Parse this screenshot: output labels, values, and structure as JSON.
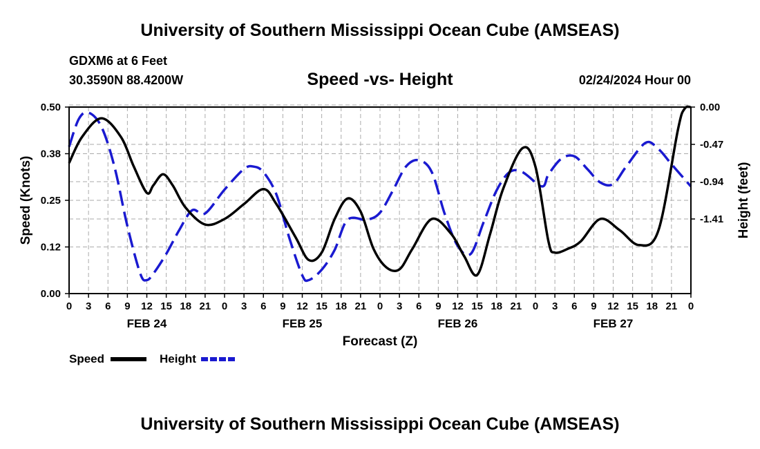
{
  "header": {
    "main_title": "University of Southern Mississippi Ocean Cube (AMSEAS)",
    "station": "GDXM6 at 6 Feet",
    "coords": "30.3590N  88.4200W",
    "chart_title": "Speed -vs- Height",
    "datetime": "02/24/2024 Hour 00"
  },
  "footer": {
    "title": "University of Southern Mississippi Ocean Cube (AMSEAS)"
  },
  "colors": {
    "speed": "#000000",
    "height": "#1a1ad0",
    "grid": "#aaaaaa"
  },
  "chart_data": {
    "type": "line",
    "title": "Speed -vs- Height",
    "xlabel": "Forecast (Z)",
    "ylabel": "Speed (Knots)",
    "y2label": "Height (feet)",
    "xlim": [
      0,
      96
    ],
    "ylim": [
      0,
      0.5
    ],
    "y2lim": [
      -2.35,
      0.0
    ],
    "y_ticks": [
      "0.00",
      "0.12",
      "0.25",
      "0.38",
      "0.50"
    ],
    "y_tick_values": [
      0,
      0.125,
      0.25,
      0.375,
      0.5
    ],
    "y2_ticks": [
      "0.00",
      "-0.47",
      "-0.94",
      "-1.41"
    ],
    "y2_tick_values": [
      0,
      -0.47,
      -0.94,
      -1.41
    ],
    "x_tick_labels": [
      "0",
      "3",
      "6",
      "9",
      "12",
      "15",
      "18",
      "21",
      "0",
      "3",
      "6",
      "9",
      "12",
      "15",
      "18",
      "21",
      "0",
      "3",
      "6",
      "9",
      "12",
      "15",
      "18",
      "21",
      "0",
      "3",
      "6",
      "9",
      "12",
      "15",
      "18",
      "21",
      "0"
    ],
    "day_labels": [
      {
        "label": "FEB 24",
        "hour": 12
      },
      {
        "label": "FEB 25",
        "hour": 36
      },
      {
        "label": "FEB 26",
        "hour": 60
      },
      {
        "label": "FEB 27",
        "hour": 84
      }
    ],
    "legend": [
      "Speed",
      "Height"
    ],
    "legend_position": "bottom-left",
    "series": [
      {
        "name": "Speed",
        "axis": "left",
        "style": "solid",
        "x": [
          0,
          2,
          5,
          8,
          10,
          12,
          13,
          14.5,
          16,
          18,
          21,
          24,
          27,
          30,
          32,
          35,
          37,
          39,
          41,
          43,
          45,
          47,
          49,
          51,
          53,
          56,
          59,
          61,
          63,
          65,
          67,
          70,
          72,
          74,
          75,
          77,
          79,
          82,
          85,
          88,
          91,
          94,
          95,
          96
        ],
        "values": [
          0.35,
          0.42,
          0.47,
          0.42,
          0.34,
          0.27,
          0.29,
          0.32,
          0.29,
          0.23,
          0.185,
          0.2,
          0.24,
          0.28,
          0.24,
          0.15,
          0.09,
          0.11,
          0.2,
          0.255,
          0.22,
          0.12,
          0.07,
          0.065,
          0.12,
          0.2,
          0.16,
          0.1,
          0.05,
          0.16,
          0.28,
          0.39,
          0.34,
          0.14,
          0.11,
          0.12,
          0.14,
          0.2,
          0.17,
          0.13,
          0.17,
          0.44,
          0.495,
          0.5
        ]
      },
      {
        "name": "Height",
        "axis": "right",
        "style": "dashed",
        "x": [
          0,
          1.5,
          3,
          5,
          7,
          9,
          11,
          12,
          13,
          15,
          17,
          19,
          21,
          24,
          27,
          28.5,
          30,
          32,
          34,
          36,
          37,
          39,
          41,
          43,
          46,
          48,
          50,
          52,
          54,
          56,
          58,
          60,
          62,
          64,
          66,
          68,
          70,
          73,
          74,
          76,
          78,
          80,
          82,
          84,
          86,
          89,
          91,
          93,
          96
        ],
        "values": [
          -0.5,
          -0.15,
          -0.07,
          -0.25,
          -0.75,
          -1.5,
          -2.1,
          -2.18,
          -2.1,
          -1.85,
          -1.55,
          -1.3,
          -1.34,
          -1.04,
          -0.78,
          -0.75,
          -0.82,
          -1.1,
          -1.65,
          -2.12,
          -2.18,
          -2.05,
          -1.8,
          -1.42,
          -1.42,
          -1.33,
          -1.05,
          -0.75,
          -0.67,
          -0.82,
          -1.35,
          -1.75,
          -1.85,
          -1.45,
          -1.05,
          -0.82,
          -0.82,
          -1.0,
          -0.85,
          -0.65,
          -0.62,
          -0.78,
          -0.95,
          -0.97,
          -0.75,
          -0.45,
          -0.53,
          -0.72,
          -1.0
        ]
      }
    ]
  }
}
